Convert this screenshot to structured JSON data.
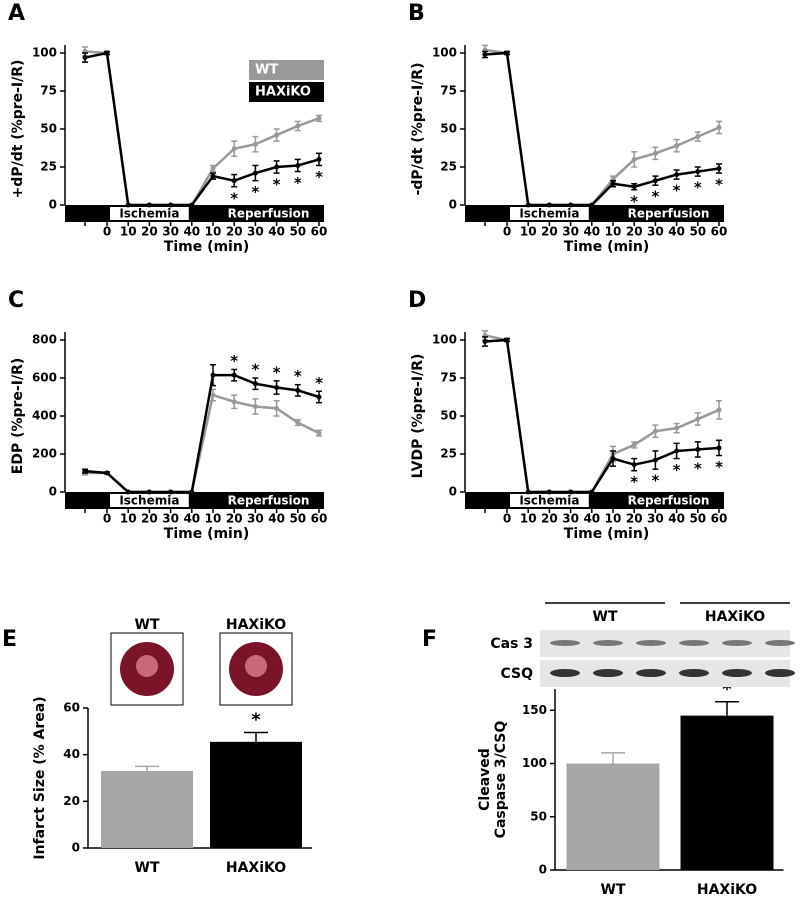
{
  "chart_data": [
    {
      "type": "line",
      "panel": "A",
      "y_label": "+dP/dt (%pre-I/R)",
      "x_label": "Time (min)",
      "categories": [
        null,
        "0",
        "10",
        "20",
        "30",
        "40",
        "10",
        "20",
        "30",
        "40",
        "50",
        "60"
      ],
      "series": [
        {
          "name": "WT",
          "color": "#999999",
          "values": [
            101,
            100,
            0,
            0,
            0,
            0,
            24,
            37,
            40,
            46,
            52,
            57
          ],
          "errors": [
            3,
            1,
            0,
            0,
            0,
            0,
            2,
            5,
            5,
            4,
            3,
            2
          ]
        },
        {
          "name": "HAXiKO",
          "color": "#000000",
          "values": [
            97,
            100,
            0,
            0,
            0,
            0,
            19,
            16,
            21,
            25,
            26,
            30
          ],
          "errors": [
            3,
            1,
            0,
            0,
            0,
            0,
            2,
            4,
            5,
            4,
            4,
            4
          ]
        }
      ],
      "ylim": [
        0,
        100
      ],
      "yticks": [
        0,
        25,
        50,
        75,
        100
      ],
      "significance": [
        null,
        null,
        null,
        null,
        null,
        null,
        null,
        "*",
        "*",
        "*",
        "*",
        "*"
      ],
      "phases": [
        "Ischemia",
        "Reperfusion"
      ],
      "legend": "upper right"
    },
    {
      "type": "line",
      "panel": "B",
      "y_label": "-dP/dt (%pre-I/R)",
      "x_label": "Time (min)",
      "categories": [
        null,
        "0",
        "10",
        "20",
        "30",
        "40",
        "10",
        "20",
        "30",
        "40",
        "50",
        "60"
      ],
      "series": [
        {
          "name": "WT",
          "color": "#999999",
          "values": [
            102,
            100,
            0,
            0,
            0,
            0,
            17,
            30,
            34,
            39,
            45,
            51
          ],
          "errors": [
            3,
            1,
            0,
            0,
            0,
            0,
            2,
            5,
            4,
            4,
            3,
            4
          ]
        },
        {
          "name": "HAXiKO",
          "color": "#000000",
          "values": [
            99,
            100,
            0,
            0,
            0,
            0,
            14,
            12,
            16,
            20,
            22,
            24
          ],
          "errors": [
            2,
            1,
            0,
            0,
            0,
            0,
            2,
            2,
            3,
            3,
            3,
            3
          ]
        }
      ],
      "ylim": [
        0,
        100
      ],
      "yticks": [
        0,
        25,
        50,
        75,
        100
      ],
      "significance": [
        null,
        null,
        null,
        null,
        null,
        null,
        null,
        "*",
        "*",
        "*",
        "*",
        "*"
      ],
      "phases": [
        "Ischemia",
        "Reperfusion"
      ]
    },
    {
      "type": "line",
      "panel": "C",
      "y_label": "EDP (%pre-I/R)",
      "x_label": "Time (min)",
      "categories": [
        null,
        "0",
        "10",
        "20",
        "30",
        "40",
        "10",
        "20",
        "30",
        "40",
        "50",
        "60"
      ],
      "series": [
        {
          "name": "WT",
          "color": "#999999",
          "values": [
            100,
            100,
            0,
            0,
            0,
            0,
            510,
            475,
            450,
            440,
            365,
            310
          ],
          "errors": [
            10,
            5,
            0,
            0,
            0,
            0,
            30,
            35,
            40,
            40,
            15,
            15
          ]
        },
        {
          "name": "HAXiKO",
          "color": "#000000",
          "values": [
            110,
            100,
            0,
            0,
            0,
            0,
            615,
            615,
            570,
            550,
            535,
            500
          ],
          "errors": [
            10,
            5,
            0,
            0,
            0,
            0,
            55,
            30,
            30,
            35,
            30,
            30
          ]
        }
      ],
      "ylim": [
        0,
        800
      ],
      "yticks": [
        0,
        200,
        400,
        600,
        800
      ],
      "significance": [
        null,
        null,
        null,
        null,
        null,
        null,
        null,
        "*",
        "*",
        "*",
        "*",
        "*"
      ],
      "phases": [
        "Ischemia",
        "Reperfusion"
      ]
    },
    {
      "type": "line",
      "panel": "D",
      "y_label": "LVDP (%pre-I/R)",
      "x_label": "Time (min)",
      "categories": [
        null,
        "0",
        "10",
        "20",
        "30",
        "40",
        "10",
        "20",
        "30",
        "40",
        "50",
        "60"
      ],
      "series": [
        {
          "name": "WT",
          "color": "#999999",
          "values": [
            103,
            100,
            0,
            0,
            0,
            0,
            25,
            31,
            40,
            42,
            48,
            54
          ],
          "errors": [
            3,
            1,
            0,
            0,
            0,
            0,
            5,
            2,
            4,
            3,
            4,
            6
          ]
        },
        {
          "name": "HAXiKO",
          "color": "#000000",
          "values": [
            99,
            100,
            0,
            0,
            0,
            0,
            22,
            18,
            21,
            27,
            28,
            29
          ],
          "errors": [
            3,
            1,
            0,
            0,
            0,
            0,
            5,
            4,
            6,
            5,
            5,
            5
          ]
        }
      ],
      "ylim": [
        0,
        100
      ],
      "yticks": [
        0,
        25,
        50,
        75,
        100
      ],
      "significance": [
        null,
        null,
        null,
        null,
        null,
        null,
        null,
        "*",
        "*",
        "*",
        "*",
        "*"
      ],
      "phases": [
        "Ischemia",
        "Reperfusion"
      ]
    },
    {
      "type": "bar",
      "panel": "E",
      "y_label": "Infarct Size (% Area)",
      "categories": [
        "WT",
        "HAXiKO"
      ],
      "values": [
        33,
        45.5
      ],
      "errors": [
        2,
        4
      ],
      "colors": [
        "#a6a6a6",
        "#000000"
      ],
      "ylim": [
        0,
        60
      ],
      "yticks": [
        0,
        20,
        40,
        60
      ],
      "significance": [
        null,
        "*"
      ]
    },
    {
      "type": "bar",
      "panel": "F",
      "y_label": [
        "Cleaved",
        "Caspase 3/CSQ"
      ],
      "categories": [
        "WT",
        "HAXiKO"
      ],
      "values": [
        100,
        145
      ],
      "errors": [
        10,
        13
      ],
      "colors": [
        "#a6a6a6",
        "#000000"
      ],
      "ylim": [
        0,
        170
      ],
      "yticks": [
        0,
        50,
        100,
        150
      ],
      "significance": [
        null,
        "*"
      ],
      "blot": {
        "rows": [
          "Cas 3",
          "CSQ"
        ],
        "groups": [
          "WT",
          "HAXiKO"
        ]
      }
    }
  ]
}
